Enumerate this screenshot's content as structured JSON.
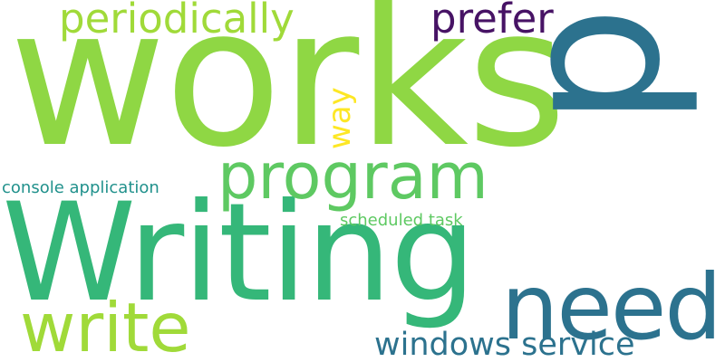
{
  "words": {
    "works": {
      "text": "works",
      "color": "#8fd744"
    },
    "p": {
      "text": "p",
      "color": "#2c728e"
    },
    "writing": {
      "text": "Writing",
      "color": "#35b779"
    },
    "program": {
      "text": "program",
      "color": "#5ec962"
    },
    "need": {
      "text": "need",
      "color": "#2c728e"
    },
    "write": {
      "text": "write",
      "color": "#a0da39"
    },
    "periodically": {
      "text": "periodically",
      "color": "#a0da39"
    },
    "prefer": {
      "text": "prefer",
      "color": "#471365"
    },
    "way": {
      "text": "way",
      "color": "#fde725"
    },
    "windows_service": {
      "text": "windows service",
      "color": "#2c728e"
    },
    "console_application": {
      "text": "console application",
      "color": "#21918c"
    },
    "scheduled_task": {
      "text": "scheduled task",
      "color": "#5ec962"
    }
  }
}
